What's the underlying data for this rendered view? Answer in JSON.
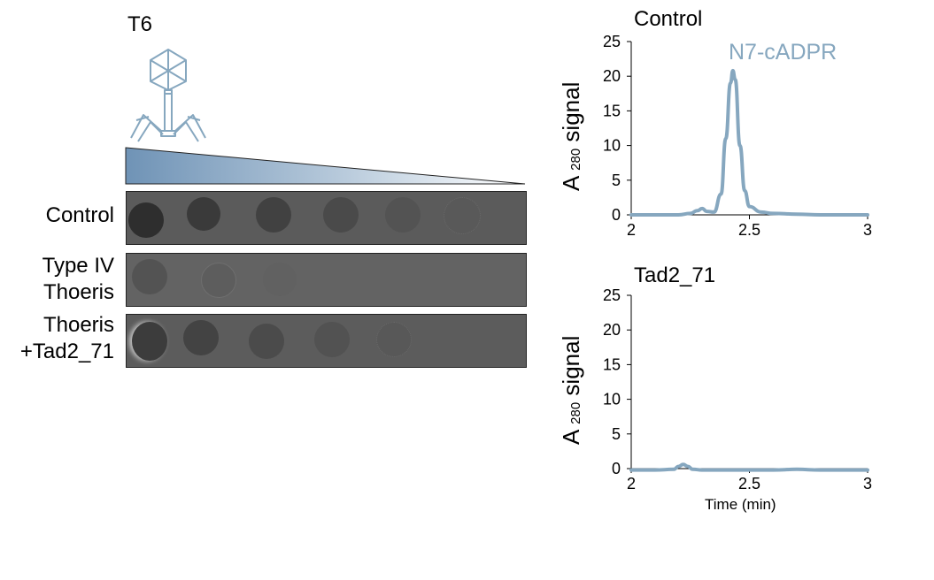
{
  "colors": {
    "accent": "#86a7bf",
    "plate_dark": "#3c3c3c",
    "plate_mid": "#5a5a5a",
    "phage": "#86a7bf"
  },
  "phage_panel": {
    "phage_name": "T6",
    "phage_icon": "bacteriophage-icon",
    "gradient_icon": "dilution-triangle-icon",
    "rows": [
      {
        "label_lines": [
          "Control"
        ],
        "spots_visible": 6
      },
      {
        "label_lines": [
          "Type IV",
          "Thoeris"
        ],
        "spots_visible": 3
      },
      {
        "label_lines": [
          "Thoeris",
          "+Tad2_71"
        ],
        "spots_visible": 5
      }
    ]
  },
  "chart_data": [
    {
      "type": "line",
      "title": "Control",
      "xlabel": "",
      "ylabel": "A 280 signal",
      "ylabel_main": "A",
      "ylabel_sub": "280",
      "ylabel_rest": "signal",
      "xlim": [
        2,
        3
      ],
      "ylim": [
        0,
        25
      ],
      "xticks": [
        "2",
        "2.5",
        "3"
      ],
      "yticks": [
        "0",
        "5",
        "10",
        "15",
        "20",
        "25"
      ],
      "annotation": "N7-cADPR",
      "series": [
        {
          "name": "N7-cADPR",
          "x": [
            2.0,
            2.1,
            2.2,
            2.25,
            2.28,
            2.3,
            2.32,
            2.35,
            2.38,
            2.4,
            2.42,
            2.43,
            2.44,
            2.46,
            2.48,
            2.5,
            2.55,
            2.6,
            2.7,
            2.8,
            2.9,
            3.0
          ],
          "y": [
            0,
            0,
            0,
            0.2,
            0.6,
            0.9,
            0.5,
            0.4,
            3,
            11,
            19,
            20.8,
            19.5,
            10,
            3.5,
            1.2,
            0.4,
            0.2,
            0.1,
            0,
            0,
            0
          ]
        }
      ]
    },
    {
      "type": "line",
      "title": "Tad2_71",
      "xlabel": "Time (min)",
      "ylabel": "A 280 signal",
      "ylabel_main": "A",
      "ylabel_sub": "280",
      "ylabel_rest": "signal",
      "xlim": [
        2,
        3
      ],
      "ylim": [
        0,
        25
      ],
      "xticks": [
        "2",
        "2.5",
        "3"
      ],
      "yticks": [
        "0",
        "5",
        "10",
        "15",
        "20",
        "25"
      ],
      "annotation": "",
      "series": [
        {
          "name": "Tad2_71",
          "x": [
            2.0,
            2.1,
            2.18,
            2.2,
            2.22,
            2.24,
            2.26,
            2.3,
            2.4,
            2.5,
            2.6,
            2.7,
            2.8,
            2.9,
            3.0
          ],
          "y": [
            -0.2,
            -0.2,
            -0.1,
            0.3,
            0.6,
            0.3,
            -0.1,
            -0.2,
            -0.2,
            -0.2,
            -0.2,
            -0.1,
            -0.2,
            -0.2,
            -0.2
          ]
        }
      ]
    }
  ]
}
